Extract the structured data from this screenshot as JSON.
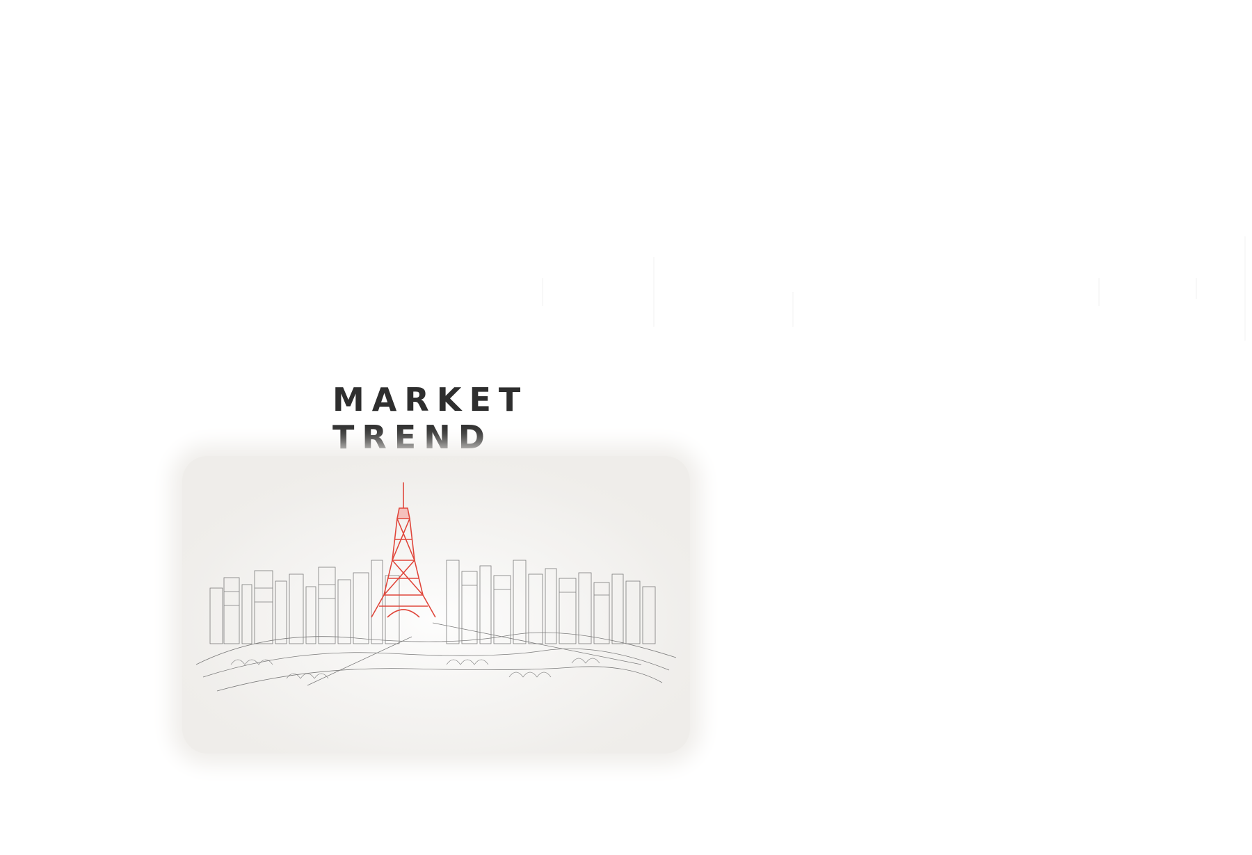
{
  "article": {
    "title_line_1": "MARKET",
    "title_line_2": "TREND",
    "illustration_icon": "tokyo-skyline-sketch-illustration"
  },
  "colors": {
    "page_background": "#ffffff",
    "title": "#2e2e2e",
    "illustration_background": "#efedea",
    "sketch_lines": "#555555",
    "tower_accent": "#e0463b"
  }
}
